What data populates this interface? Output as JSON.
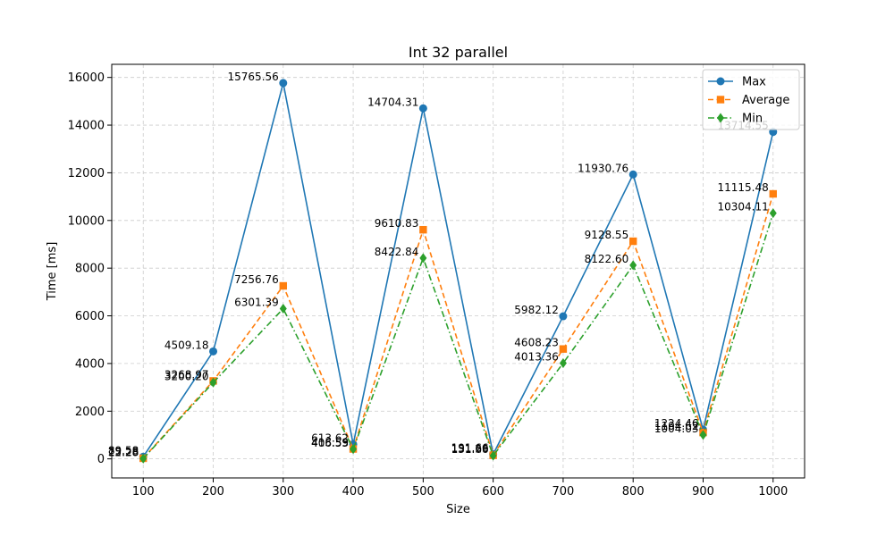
{
  "chart_data": {
    "type": "line",
    "title": "Int 32 parallel",
    "xlabel": "Size",
    "ylabel": "Time [ms]",
    "x": [
      100,
      200,
      300,
      400,
      500,
      600,
      700,
      800,
      900,
      1000
    ],
    "xticks": [
      "100",
      "200",
      "300",
      "400",
      "500",
      "600",
      "700",
      "800",
      "900",
      "1000"
    ],
    "yticks": [
      "0",
      "2000",
      "4000",
      "6000",
      "8000",
      "10000",
      "12000",
      "14000",
      "16000"
    ],
    "xlim": [
      55,
      1045
    ],
    "ylim": [
      -800,
      16550
    ],
    "grid": true,
    "legend_position": "top-right",
    "series": [
      {
        "name": "Max",
        "color": "#1f77b4",
        "marker": "circle",
        "line_style": "solid",
        "values": [
          89.58,
          4509.18,
          15765.56,
          613.62,
          14704.31,
          191.66,
          5982.12,
          11930.76,
          1224.46,
          13714.55
        ],
        "labels": [
          "89.58",
          "4509.18",
          "15765.56",
          "613.62",
          "14704.31",
          "191.66",
          "5982.12",
          "11930.76",
          "1224.46",
          "13714.55"
        ]
      },
      {
        "name": "Average",
        "color": "#ff7f0e",
        "marker": "square",
        "line_style": "dashed",
        "values": [
          25.28,
          3268.97,
          7256.76,
          415.59,
          9610.83,
          151.29,
          4608.23,
          9128.55,
          1104.62,
          11115.48
        ],
        "labels": [
          "25.28",
          "3268.97",
          "7256.76",
          "415.59",
          "9610.83",
          "151.29",
          "4608.23",
          "9128.55",
          "1104.62",
          "11115.48"
        ]
      },
      {
        "name": "Min",
        "color": "#2ca02c",
        "marker": "diamond",
        "line_style": "dashdot",
        "values": [
          12.28,
          3200.2,
          6301.39,
          406.53,
          8422.84,
          131.66,
          4013.36,
          8122.6,
          1004.03,
          10304.11
        ],
        "labels": [
          "12.28",
          "3200.20",
          "6301.39",
          "406.53",
          "8422.84",
          "131.66",
          "4013.36",
          "8122.60",
          "1004.03",
          "10304.11"
        ]
      }
    ]
  }
}
